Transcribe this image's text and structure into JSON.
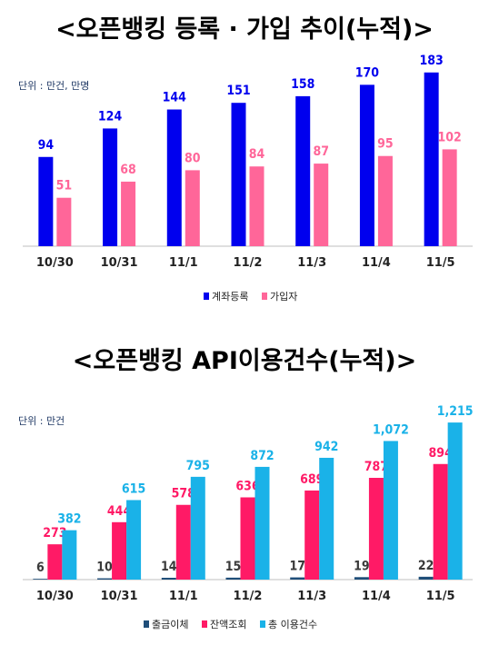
{
  "chart_data": [
    {
      "type": "bar",
      "title": "<오픈뱅킹 등록 · 가입 추이(누적)>",
      "unit": "단위 : 만건, 만명",
      "categories": [
        "10/30",
        "10/31",
        "11/1",
        "11/2",
        "11/3",
        "11/4",
        "11/5"
      ],
      "series": [
        {
          "name": "계좌등록",
          "color": "#0000ee",
          "values": [
            94,
            124,
            144,
            151,
            158,
            170,
            183
          ]
        },
        {
          "name": "가입자",
          "color": "#ff6699",
          "values": [
            51,
            68,
            80,
            84,
            87,
            95,
            102
          ]
        }
      ],
      "ylim": [
        0,
        200
      ],
      "grid": false,
      "legend": "bottom"
    },
    {
      "type": "bar",
      "title": "<오픈뱅킹 API이용건수(누적)>",
      "unit": "단위 : 만건",
      "categories": [
        "10/30",
        "10/31",
        "11/1",
        "11/2",
        "11/3",
        "11/4",
        "11/5"
      ],
      "series": [
        {
          "name": "출금이체",
          "color": "#1f4e79",
          "values": [
            6,
            10,
            14,
            15,
            17,
            19,
            22
          ]
        },
        {
          "name": "잔액조회",
          "color": "#ff1a66",
          "values": [
            273,
            444,
            578,
            636,
            689,
            787,
            894
          ]
        },
        {
          "name": "총 이용건수",
          "color": "#1ab2e8",
          "values": [
            382,
            615,
            795,
            872,
            942,
            1072,
            1215
          ]
        }
      ],
      "value_labels": [
        [
          "6",
          "10",
          "14",
          "15",
          "17",
          "19",
          "22"
        ],
        [
          "273",
          "444",
          "578",
          "636",
          "689",
          "787",
          "894"
        ],
        [
          "382",
          "615",
          "795",
          "872",
          "942",
          "1,072",
          "1,215"
        ]
      ],
      "ylim": [
        0,
        1300
      ],
      "grid": false,
      "legend": "bottom"
    }
  ]
}
